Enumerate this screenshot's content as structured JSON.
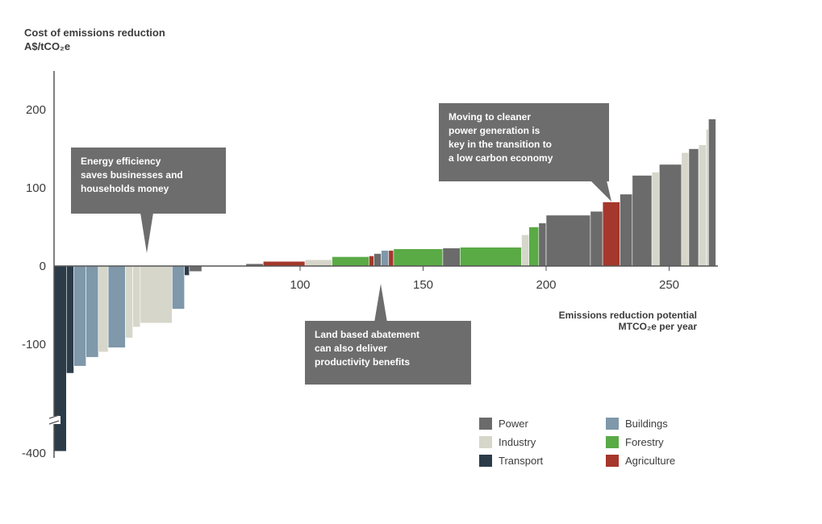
{
  "chart_data": {
    "type": "bar",
    "subtype": "marginal abatement cost curve (variable-width bars)",
    "ylabel_line1": "Cost of emissions reduction",
    "ylabel_line2": "A$/tCO₂e",
    "xlabel_line1": "Emissions reduction potential",
    "xlabel_line2": "MTCO₂e per year",
    "x_ticks": [
      100,
      150,
      200,
      250
    ],
    "y_ticks": [
      200,
      100,
      0,
      -100,
      -400
    ],
    "ylim_display": [
      -400,
      200
    ],
    "y_axis_break": true,
    "grid": false,
    "legend_position": "bottom-right",
    "legend": [
      {
        "name": "Power",
        "color": "#6b6b6b"
      },
      {
        "name": "Buildings",
        "color": "#7f98aa"
      },
      {
        "name": "Industry",
        "color": "#d6d6ca"
      },
      {
        "name": "Forestry",
        "color": "#5aaa46"
      },
      {
        "name": "Transport",
        "color": "#2b3c48"
      },
      {
        "name": "Agriculture",
        "color": "#a5372c"
      }
    ],
    "bars": [
      {
        "x0": 0,
        "x1": 5,
        "value": -395,
        "sector": "Transport"
      },
      {
        "x0": 5,
        "x1": 8,
        "value": -175,
        "sector": "Transport"
      },
      {
        "x0": 8,
        "x1": 13,
        "value": -155,
        "sector": "Buildings"
      },
      {
        "x0": 13,
        "x1": 18,
        "value": -130,
        "sector": "Buildings"
      },
      {
        "x0": 18,
        "x1": 22,
        "value": -115,
        "sector": "Industry"
      },
      {
        "x0": 22,
        "x1": 29,
        "value": -103,
        "sector": "Buildings"
      },
      {
        "x0": 29,
        "x1": 32,
        "value": -92,
        "sector": "Industry"
      },
      {
        "x0": 32,
        "x1": 35,
        "value": -78,
        "sector": "Industry"
      },
      {
        "x0": 35,
        "x1": 48,
        "value": -73,
        "sector": "Industry"
      },
      {
        "x0": 48,
        "x1": 53,
        "value": -55,
        "sector": "Buildings"
      },
      {
        "x0": 53,
        "x1": 55,
        "value": -12,
        "sector": "Transport"
      },
      {
        "x0": 55,
        "x1": 60,
        "value": -7,
        "sector": "Power"
      },
      {
        "x0": 78,
        "x1": 85,
        "value": 3,
        "sector": "Power"
      },
      {
        "x0": 85,
        "x1": 102,
        "value": 6,
        "sector": "Agriculture"
      },
      {
        "x0": 102,
        "x1": 113,
        "value": 8,
        "sector": "Industry"
      },
      {
        "x0": 113,
        "x1": 128,
        "value": 12,
        "sector": "Forestry"
      },
      {
        "x0": 128,
        "x1": 130,
        "value": 13,
        "sector": "Agriculture"
      },
      {
        "x0": 130,
        "x1": 133,
        "value": 16,
        "sector": "Power"
      },
      {
        "x0": 133,
        "x1": 136,
        "value": 20,
        "sector": "Buildings"
      },
      {
        "x0": 136,
        "x1": 138,
        "value": 20,
        "sector": "Agriculture"
      },
      {
        "x0": 138,
        "x1": 158,
        "value": 22,
        "sector": "Forestry"
      },
      {
        "x0": 158,
        "x1": 165,
        "value": 23,
        "sector": "Power"
      },
      {
        "x0": 165,
        "x1": 190,
        "value": 24,
        "sector": "Forestry"
      },
      {
        "x0": 190,
        "x1": 193,
        "value": 40,
        "sector": "Industry"
      },
      {
        "x0": 193,
        "x1": 197,
        "value": 50,
        "sector": "Forestry"
      },
      {
        "x0": 197,
        "x1": 200,
        "value": 55,
        "sector": "Power"
      },
      {
        "x0": 200,
        "x1": 218,
        "value": 65,
        "sector": "Power"
      },
      {
        "x0": 218,
        "x1": 223,
        "value": 70,
        "sector": "Power"
      },
      {
        "x0": 223,
        "x1": 230,
        "value": 82,
        "sector": "Agriculture"
      },
      {
        "x0": 230,
        "x1": 235,
        "value": 92,
        "sector": "Power"
      },
      {
        "x0": 235,
        "x1": 243,
        "value": 116,
        "sector": "Power"
      },
      {
        "x0": 243,
        "x1": 246,
        "value": 120,
        "sector": "Industry"
      },
      {
        "x0": 246,
        "x1": 255,
        "value": 130,
        "sector": "Power"
      },
      {
        "x0": 255,
        "x1": 258,
        "value": 145,
        "sector": "Industry"
      },
      {
        "x0": 258,
        "x1": 262,
        "value": 150,
        "sector": "Power"
      },
      {
        "x0": 262,
        "x1": 265,
        "value": 155,
        "sector": "Industry"
      },
      {
        "x0": 265,
        "x1": 266,
        "value": 175,
        "sector": "Industry"
      },
      {
        "x0": 266,
        "x1": 269,
        "value": 188,
        "sector": "Power"
      }
    ]
  },
  "callouts": {
    "efficiency": [
      "Energy efficiency",
      "saves businesses and",
      "households money"
    ],
    "land": [
      "Land based abatement",
      "can also deliver",
      "productivity benefits"
    ],
    "power": [
      "Moving to cleaner",
      "power generation is",
      "key in the transition to",
      "a low carbon economy"
    ]
  }
}
